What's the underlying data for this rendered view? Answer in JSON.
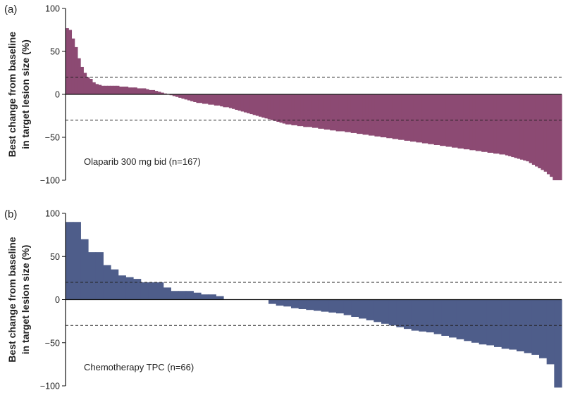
{
  "chart_data": [
    {
      "type": "bar",
      "panel_label": "(a)",
      "annotation": "Olaparib 300 mg bid (n=167)",
      "ylabel_lines": [
        "Best change from baseline",
        "in target lesion size (%)"
      ],
      "yticks": [
        100,
        50,
        0,
        -50,
        -100
      ],
      "ylim": [
        -100,
        100
      ],
      "color": "#8c4a73",
      "reference_lines": [
        20,
        -30
      ],
      "values": [
        77,
        75,
        65,
        55,
        42,
        32,
        25,
        20,
        18,
        14,
        12,
        11,
        10,
        10,
        10,
        10,
        10,
        10,
        9,
        9,
        9,
        8,
        8,
        8,
        7,
        7,
        7,
        6,
        5,
        5,
        4,
        3,
        2,
        1,
        0,
        -1,
        -2,
        -3,
        -4,
        -5,
        -6,
        -7,
        -8,
        -9,
        -10,
        -10,
        -11,
        -11,
        -12,
        -12,
        -13,
        -13,
        -14,
        -15,
        -15,
        -16,
        -17,
        -18,
        -19,
        -20,
        -21,
        -22,
        -23,
        -24,
        -25,
        -26,
        -27,
        -28,
        -29,
        -30,
        -31,
        -32,
        -33,
        -34,
        -35,
        -35,
        -36,
        -36,
        -37,
        -37,
        -38,
        -38,
        -38,
        -39,
        -39,
        -40,
        -40,
        -41,
        -41,
        -42,
        -42,
        -43,
        -43,
        -43,
        -44,
        -44,
        -45,
        -45,
        -46,
        -46,
        -47,
        -47,
        -48,
        -48,
        -49,
        -49,
        -50,
        -50,
        -51,
        -51,
        -52,
        -52,
        -53,
        -53,
        -54,
        -54,
        -55,
        -55,
        -56,
        -56,
        -57,
        -57,
        -58,
        -58,
        -59,
        -59,
        -60,
        -60,
        -61,
        -61,
        -62,
        -62,
        -63,
        -63,
        -64,
        -64,
        -65,
        -65,
        -66,
        -66,
        -67,
        -67,
        -68,
        -68,
        -69,
        -69,
        -70,
        -70,
        -71,
        -72,
        -73,
        -74,
        -75,
        -76,
        -77,
        -78,
        -80,
        -82,
        -84,
        -86,
        -88,
        -90,
        -93,
        -96,
        -100,
        -100,
        -100
      ]
    },
    {
      "type": "bar",
      "panel_label": "(b)",
      "annotation": "Chemotherapy TPC (n=66)",
      "ylabel_lines": [
        "Best change from baseline",
        "in target lesion size (%)"
      ],
      "yticks": [
        100,
        50,
        0,
        -50,
        -100
      ],
      "ylim": [
        -100,
        100
      ],
      "color": "#4e5d8a",
      "reference_lines": [
        20,
        -30
      ],
      "values": [
        90,
        90,
        70,
        55,
        55,
        40,
        35,
        28,
        26,
        24,
        20,
        20,
        20,
        14,
        10,
        10,
        10,
        8,
        6,
        6,
        4,
        0,
        0,
        0,
        0,
        0,
        0,
        -5,
        -7,
        -8,
        -10,
        -11,
        -12,
        -13,
        -14,
        -15,
        -16,
        -18,
        -20,
        -22,
        -24,
        -26,
        -28,
        -30,
        -32,
        -34,
        -36,
        -37,
        -38,
        -40,
        -42,
        -44,
        -46,
        -48,
        -50,
        -52,
        -53,
        -55,
        -57,
        -58,
        -60,
        -62,
        -64,
        -68,
        -75,
        -102
      ]
    }
  ]
}
